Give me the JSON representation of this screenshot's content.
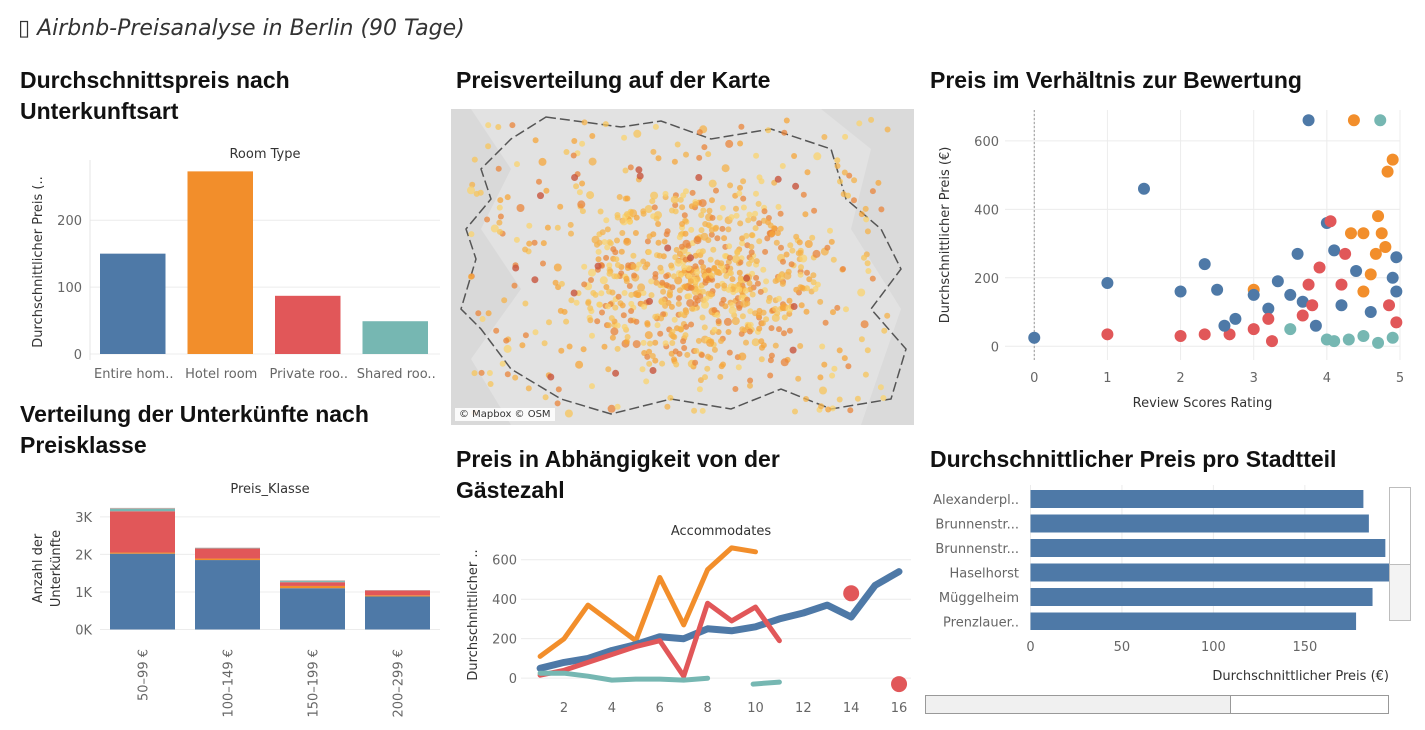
{
  "dashboard": {
    "title": "▯ Airbnb-Preisanalyse in Berlin (90 Tage)",
    "colors": {
      "blue": "#4e79a7",
      "orange": "#f28e2b",
      "red": "#e15759",
      "teal": "#76b7b2",
      "grey": "#bab0ac"
    }
  },
  "panels": {
    "room_type": {
      "title_line1": "Durchschnittspreis nach",
      "title_line2": "Unterkunftsart"
    },
    "map": {
      "title": "Preisverteilung auf der Karte",
      "attribution": "© Mapbox © OSM"
    },
    "scatter": {
      "title": "Preis im Verhältnis zur Bewertung"
    },
    "price_class": {
      "title_line1": "Verteilung der Unterkünfte nach",
      "title_line2": "Preisklasse"
    },
    "accommodates": {
      "title_line1": "Preis in Abhängigkeit von der",
      "title_line2": "Gästezahl"
    },
    "district": {
      "title": "Durchschnittlicher Preis pro Stadtteil"
    }
  },
  "chart_data": [
    {
      "id": "room-type-bar",
      "type": "bar",
      "title": "Room Type",
      "ylabel": "Durchschnittlicher Preis (..",
      "categories": [
        "Entire hom..",
        "Hotel room",
        "Private roo..",
        "Shared roo.."
      ],
      "values": [
        150,
        273,
        87,
        49
      ],
      "colors": [
        "#4e79a7",
        "#f28e2b",
        "#e15759",
        "#76b7b2"
      ],
      "yticks": [
        0,
        100,
        200
      ],
      "ylim": [
        0,
        290
      ],
      "grid": true
    },
    {
      "id": "rating-scatter",
      "type": "scatter",
      "xlabel": "Review Scores Rating",
      "ylabel": "Durchschnittlicher Preis (€)",
      "xticks": [
        0,
        1,
        2,
        3,
        4,
        5
      ],
      "yticks": [
        0,
        200,
        400,
        600
      ],
      "xlim": [
        -0.4,
        5.0
      ],
      "ylim": [
        -40,
        690
      ],
      "reference_line_x": 0,
      "points": [
        {
          "x": 0,
          "y": 25,
          "c": "blue"
        },
        {
          "x": 1,
          "y": 185,
          "c": "blue"
        },
        {
          "x": 1.5,
          "y": 460,
          "c": "blue"
        },
        {
          "x": 2,
          "y": 160,
          "c": "blue"
        },
        {
          "x": 2.33,
          "y": 240,
          "c": "blue"
        },
        {
          "x": 2.5,
          "y": 165,
          "c": "blue"
        },
        {
          "x": 3.75,
          "y": 660,
          "c": "blue"
        },
        {
          "x": 4.37,
          "y": 660,
          "c": "orange"
        },
        {
          "x": 4.73,
          "y": 660,
          "c": "teal"
        },
        {
          "x": 1,
          "y": 35,
          "c": "red"
        },
        {
          "x": 2,
          "y": 30,
          "c": "red"
        },
        {
          "x": 2.33,
          "y": 35,
          "c": "red"
        },
        {
          "x": 2.67,
          "y": 35,
          "c": "red"
        },
        {
          "x": 2.6,
          "y": 60,
          "c": "blue"
        },
        {
          "x": 2.75,
          "y": 80,
          "c": "blue"
        },
        {
          "x": 3,
          "y": 165,
          "c": "orange"
        },
        {
          "x": 3.0,
          "y": 150,
          "c": "blue"
        },
        {
          "x": 3.0,
          "y": 50,
          "c": "red"
        },
        {
          "x": 3.2,
          "y": 110,
          "c": "blue"
        },
        {
          "x": 3.2,
          "y": 80,
          "c": "red"
        },
        {
          "x": 3.25,
          "y": 15,
          "c": "red"
        },
        {
          "x": 3.33,
          "y": 190,
          "c": "blue"
        },
        {
          "x": 3.5,
          "y": 150,
          "c": "blue"
        },
        {
          "x": 3.5,
          "y": 50,
          "c": "teal"
        },
        {
          "x": 3.6,
          "y": 270,
          "c": "blue"
        },
        {
          "x": 3.67,
          "y": 130,
          "c": "blue"
        },
        {
          "x": 3.67,
          "y": 90,
          "c": "red"
        },
        {
          "x": 3.75,
          "y": 180,
          "c": "red"
        },
        {
          "x": 3.8,
          "y": 120,
          "c": "red"
        },
        {
          "x": 3.85,
          "y": 60,
          "c": "blue"
        },
        {
          "x": 3.9,
          "y": 230,
          "c": "red"
        },
        {
          "x": 4,
          "y": 360,
          "c": "blue"
        },
        {
          "x": 4.05,
          "y": 365,
          "c": "red"
        },
        {
          "x": 4.1,
          "y": 280,
          "c": "blue"
        },
        {
          "x": 4.2,
          "y": 180,
          "c": "red"
        },
        {
          "x": 4.25,
          "y": 270,
          "c": "red"
        },
        {
          "x": 4.33,
          "y": 330,
          "c": "orange"
        },
        {
          "x": 4.4,
          "y": 220,
          "c": "blue"
        },
        {
          "x": 4.5,
          "y": 160,
          "c": "orange"
        },
        {
          "x": 4.5,
          "y": 330,
          "c": "orange"
        },
        {
          "x": 4.6,
          "y": 210,
          "c": "orange"
        },
        {
          "x": 4.67,
          "y": 270,
          "c": "orange"
        },
        {
          "x": 4.7,
          "y": 380,
          "c": "orange"
        },
        {
          "x": 4.75,
          "y": 330,
          "c": "orange"
        },
        {
          "x": 4.8,
          "y": 290,
          "c": "orange"
        },
        {
          "x": 4.83,
          "y": 510,
          "c": "orange"
        },
        {
          "x": 4.9,
          "y": 545,
          "c": "orange"
        },
        {
          "x": 4.95,
          "y": 260,
          "c": "blue"
        },
        {
          "x": 4.95,
          "y": 160,
          "c": "blue"
        },
        {
          "x": 4.9,
          "y": 200,
          "c": "blue"
        },
        {
          "x": 4.85,
          "y": 120,
          "c": "red"
        },
        {
          "x": 4.0,
          "y": 20,
          "c": "teal"
        },
        {
          "x": 4.1,
          "y": 15,
          "c": "teal"
        },
        {
          "x": 4.3,
          "y": 20,
          "c": "teal"
        },
        {
          "x": 4.5,
          "y": 30,
          "c": "teal"
        },
        {
          "x": 4.7,
          "y": 10,
          "c": "teal"
        },
        {
          "x": 4.9,
          "y": 25,
          "c": "teal"
        },
        {
          "x": 4.95,
          "y": 70,
          "c": "red"
        },
        {
          "x": 4.6,
          "y": 100,
          "c": "blue"
        },
        {
          "x": 4.2,
          "y": 120,
          "c": "blue"
        }
      ],
      "grid": true
    },
    {
      "id": "price-class-stacked-bar",
      "type": "bar",
      "title": "Preis_Klasse",
      "ylabel": "Anzahl der Unterkünfte",
      "categories": [
        "50–99 €",
        "100–149 €",
        "150–199 €",
        "200–299 €"
      ],
      "series": [
        {
          "c": "blue",
          "values": [
            2020,
            1850,
            1100,
            880
          ]
        },
        {
          "c": "orange",
          "values": [
            30,
            40,
            60,
            30
          ]
        },
        {
          "c": "red",
          "values": [
            1100,
            270,
            100,
            130
          ]
        },
        {
          "c": "teal",
          "values": [
            60,
            10,
            30,
            5
          ]
        },
        {
          "c": "grey",
          "values": [
            30,
            10,
            20,
            5
          ]
        }
      ],
      "yticks": [
        0,
        1000,
        2000,
        3000
      ],
      "yticklabels": [
        "0K",
        "1K",
        "2K",
        "3K"
      ],
      "ylim": [
        -200,
        3450
      ],
      "grid": true
    },
    {
      "id": "accommodates-line",
      "type": "line",
      "title": "Accommodates",
      "ylabel": "Durchschnittlicher ..",
      "xticks": [
        2,
        4,
        6,
        8,
        10,
        12,
        14,
        16
      ],
      "yticks": [
        0,
        200,
        400,
        600
      ],
      "xlim": [
        0.2,
        16.5
      ],
      "ylim": [
        -60,
        700
      ],
      "series": [
        {
          "c": "orange",
          "points": [
            [
              1,
              110
            ],
            [
              2,
              200
            ],
            [
              3,
              370
            ],
            [
              4,
              280
            ],
            [
              5,
              190
            ],
            [
              6,
              510
            ],
            [
              7,
              270
            ],
            [
              8,
              550
            ],
            [
              9,
              660
            ],
            [
              10,
              640
            ]
          ]
        },
        {
          "c": "blue",
          "points": [
            [
              1,
              50
            ],
            [
              2,
              80
            ],
            [
              3,
              100
            ],
            [
              4,
              140
            ],
            [
              5,
              170
            ],
            [
              6,
              210
            ],
            [
              7,
              200
            ],
            [
              8,
              250
            ],
            [
              9,
              240
            ],
            [
              10,
              260
            ],
            [
              11,
              300
            ],
            [
              12,
              330
            ],
            [
              13,
              370
            ],
            [
              14,
              310
            ],
            [
              15,
              470
            ],
            [
              16,
              540
            ]
          ]
        },
        {
          "c": "red",
          "points": [
            [
              1,
              15
            ],
            [
              2,
              40
            ],
            [
              3,
              80
            ],
            [
              4,
              120
            ],
            [
              5,
              160
            ],
            [
              6,
              190
            ],
            [
              7,
              10
            ],
            [
              8,
              380
            ],
            [
              9,
              290
            ],
            [
              10,
              360
            ],
            [
              11,
              190
            ]
          ]
        },
        {
          "c": "teal",
          "points": [
            [
              1,
              25
            ],
            [
              2,
              25
            ],
            [
              3,
              10
            ],
            [
              4,
              -10
            ],
            [
              5,
              -5
            ],
            [
              6,
              -5
            ],
            [
              7,
              -10
            ],
            [
              8,
              0
            ]
          ]
        },
        {
          "c": "teal",
          "points": [
            [
              9.9,
              -30
            ],
            [
              11,
              -20
            ]
          ]
        }
      ],
      "single_points": [
        {
          "x": 14,
          "y": 430,
          "c": "red"
        },
        {
          "x": 16,
          "y": -30,
          "c": "red"
        }
      ],
      "grid": true
    },
    {
      "id": "district-hbar",
      "type": "bar",
      "orientation": "horizontal",
      "xlabel": "Durchschnittlicher Preis (€)",
      "categories": [
        "Alexanderpl..",
        "Brunnenstr...",
        "Brunnenstr...",
        "Haselhorst",
        "Müggelheim",
        "Prenzlauer.."
      ],
      "values": [
        182,
        185,
        194,
        196,
        187,
        178
      ],
      "xticks": [
        0,
        50,
        100,
        150
      ],
      "xlim": [
        -3,
        196
      ],
      "grid": true
    }
  ]
}
